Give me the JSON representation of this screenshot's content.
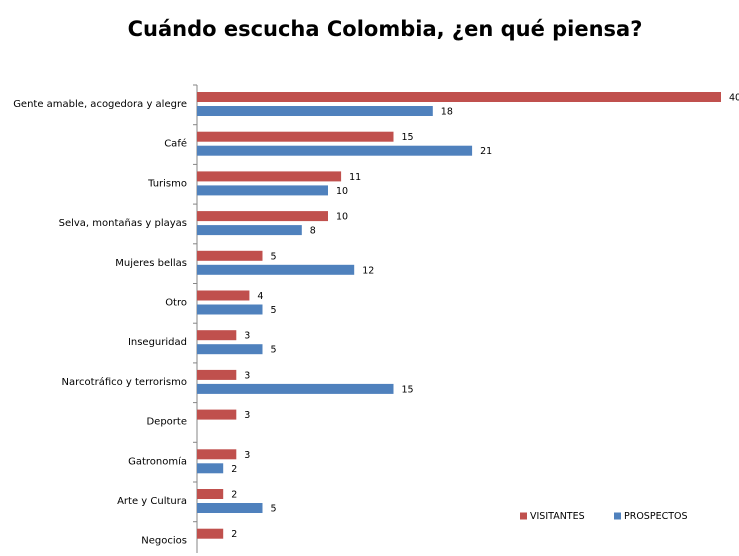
{
  "chart_data": {
    "type": "bar",
    "orientation": "horizontal",
    "title": "Cuándo escucha Colombia, ¿en qué piensa?",
    "categories": [
      "Gente amable, acogedora y alegre",
      "Café",
      "Turismo",
      "Selva, montañas y playas",
      "Mujeres bellas",
      "Otro",
      "Inseguridad",
      "Narcotráfico y terrorismo",
      "Deporte",
      "Gatronomía",
      "Arte y Cultura",
      "Negocios"
    ],
    "series": [
      {
        "name": "VISITANTES",
        "color": "#c0504d",
        "values": [
          40,
          15,
          11,
          10,
          5,
          4,
          3,
          3,
          3,
          3,
          2,
          2
        ]
      },
      {
        "name": "PROSPECTOS",
        "color": "#4f81bd",
        "values": [
          18,
          21,
          10,
          8,
          12,
          5,
          5,
          15,
          null,
          2,
          5,
          null
        ]
      }
    ],
    "legend": "bottom-right"
  }
}
